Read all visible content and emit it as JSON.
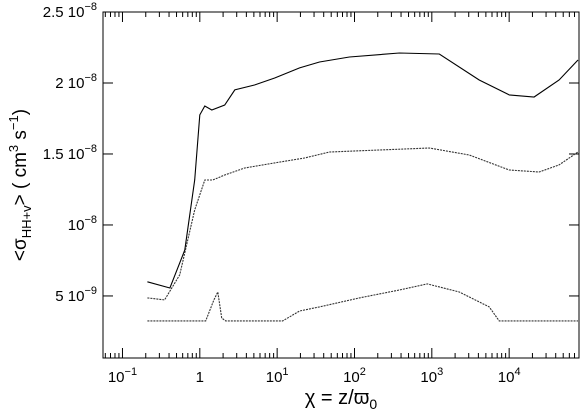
{
  "chart_data": {
    "type": "line",
    "x_scale": "log",
    "x_label": [
      {
        "text": "χ = z/ϖ"
      },
      {
        "text": "0",
        "sub": true
      }
    ],
    "y_label": [
      {
        "text": "<σ"
      },
      {
        "text": "HH+v",
        "sub": true
      },
      {
        "text": "> ( cm"
      },
      {
        "text": "3",
        "sup": true
      },
      {
        "text": " s"
      },
      {
        "text": "−1",
        "sup": true
      },
      {
        "text": ")"
      }
    ],
    "xlim": [
      0.056,
      80000
    ],
    "ylim": [
      6.3e-10,
      2.5e-08
    ],
    "xticks": [
      {
        "value": 0.1,
        "label": "10",
        "exponent": "−1"
      },
      1,
      {
        "value": 10,
        "label": "10",
        "exponent": "1"
      },
      {
        "value": 100,
        "label": "10",
        "exponent": "2"
      },
      {
        "value": 1000,
        "label": "10",
        "exponent": "3"
      },
      {
        "value": 10000,
        "label": "10",
        "exponent": "4"
      }
    ],
    "yticks": [
      {
        "value": 5e-09,
        "label": "5 10",
        "exponent": "−9"
      },
      {
        "value": 1e-08,
        "label": "10",
        "exponent": "−8"
      },
      {
        "value": 1.5e-08,
        "label": "1.5 10",
        "exponent": "−8"
      },
      {
        "value": 2e-08,
        "label": "2 10",
        "exponent": "−8"
      },
      {
        "value": 2.5e-08,
        "label": "2.5 10",
        "exponent": "−8"
      }
    ],
    "series": [
      {
        "color": "#000000",
        "dash": "none",
        "x": [
          0.21,
          0.41,
          0.64,
          0.86,
          1,
          1.16,
          1.43,
          2.1,
          2.83,
          5.1,
          9.3,
          19.5,
          35.3,
          86,
          381,
          1250,
          4100,
          10000,
          21000,
          44200,
          77700
        ],
        "values": [
          6e-09,
          5.56e-09,
          8.24e-09,
          1.317e-08,
          1.775e-08,
          1.838e-08,
          1.81e-08,
          1.845e-08,
          1.951e-08,
          1.986e-08,
          2.035e-08,
          2.106e-08,
          2.148e-08,
          2.183e-08,
          2.211e-08,
          2.204e-08,
          2.021e-08,
          1.916e-08,
          1.901e-08,
          2.021e-08,
          2.162e-08
        ]
      },
      {
        "color": "#333333",
        "dash": "2,1",
        "x": [
          0.21,
          0.35,
          0.55,
          0.86,
          1.16,
          1.47,
          2.1,
          3.81,
          9.3,
          22.6,
          47.6,
          210,
          929,
          3048,
          10000,
          24400,
          44200,
          77700
        ],
        "values": [
          4.86e-09,
          4.72e-09,
          6.48e-09,
          1.106e-08,
          1.317e-08,
          1.317e-08,
          1.352e-08,
          1.401e-08,
          1.437e-08,
          1.472e-08,
          1.514e-08,
          1.528e-08,
          1.542e-08,
          1.493e-08,
          1.387e-08,
          1.373e-08,
          1.423e-08,
          1.514e-08
        ]
      },
      {
        "color": "#333333",
        "dash": "2,1",
        "x": [
          0.21,
          1.19,
          1.52,
          1.71,
          1.92,
          2.16,
          11.8,
          19.5,
          35.3,
          116,
          381,
          875,
          2264,
          5520,
          7430,
          77700
        ],
        "values": [
          3.24e-09,
          3.24e-09,
          4.72e-09,
          5.28e-09,
          3.45e-09,
          3.24e-09,
          3.24e-09,
          3.94e-09,
          4.23e-09,
          4.86e-09,
          5.42e-09,
          5.85e-09,
          5.28e-09,
          4.23e-09,
          3.24e-09,
          3.24e-09
        ]
      }
    ]
  }
}
